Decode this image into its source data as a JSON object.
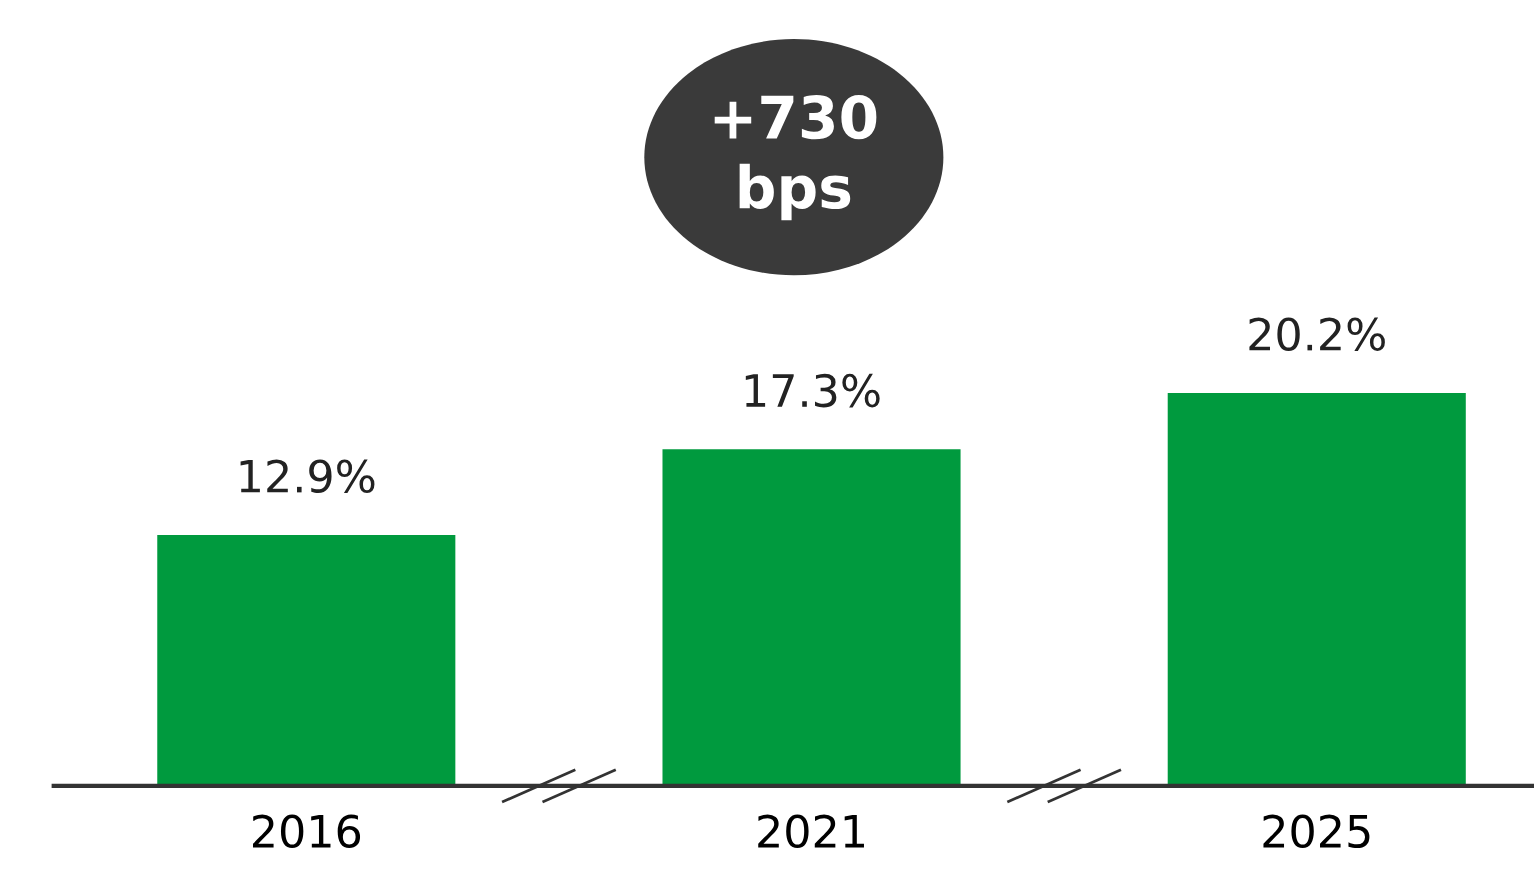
{
  "chart_data": {
    "type": "bar",
    "categories": [
      "2016",
      "2021",
      "2025"
    ],
    "values": [
      12.9,
      17.3,
      20.2
    ],
    "color": "#009a3e",
    "value_labels": [
      "12.9%",
      "17.3%",
      "20.2%"
    ],
    "annotations": [
      "+730\nbps"
    ],
    "tick_labels": "x",
    "grid": false,
    "legend": false
  }
}
